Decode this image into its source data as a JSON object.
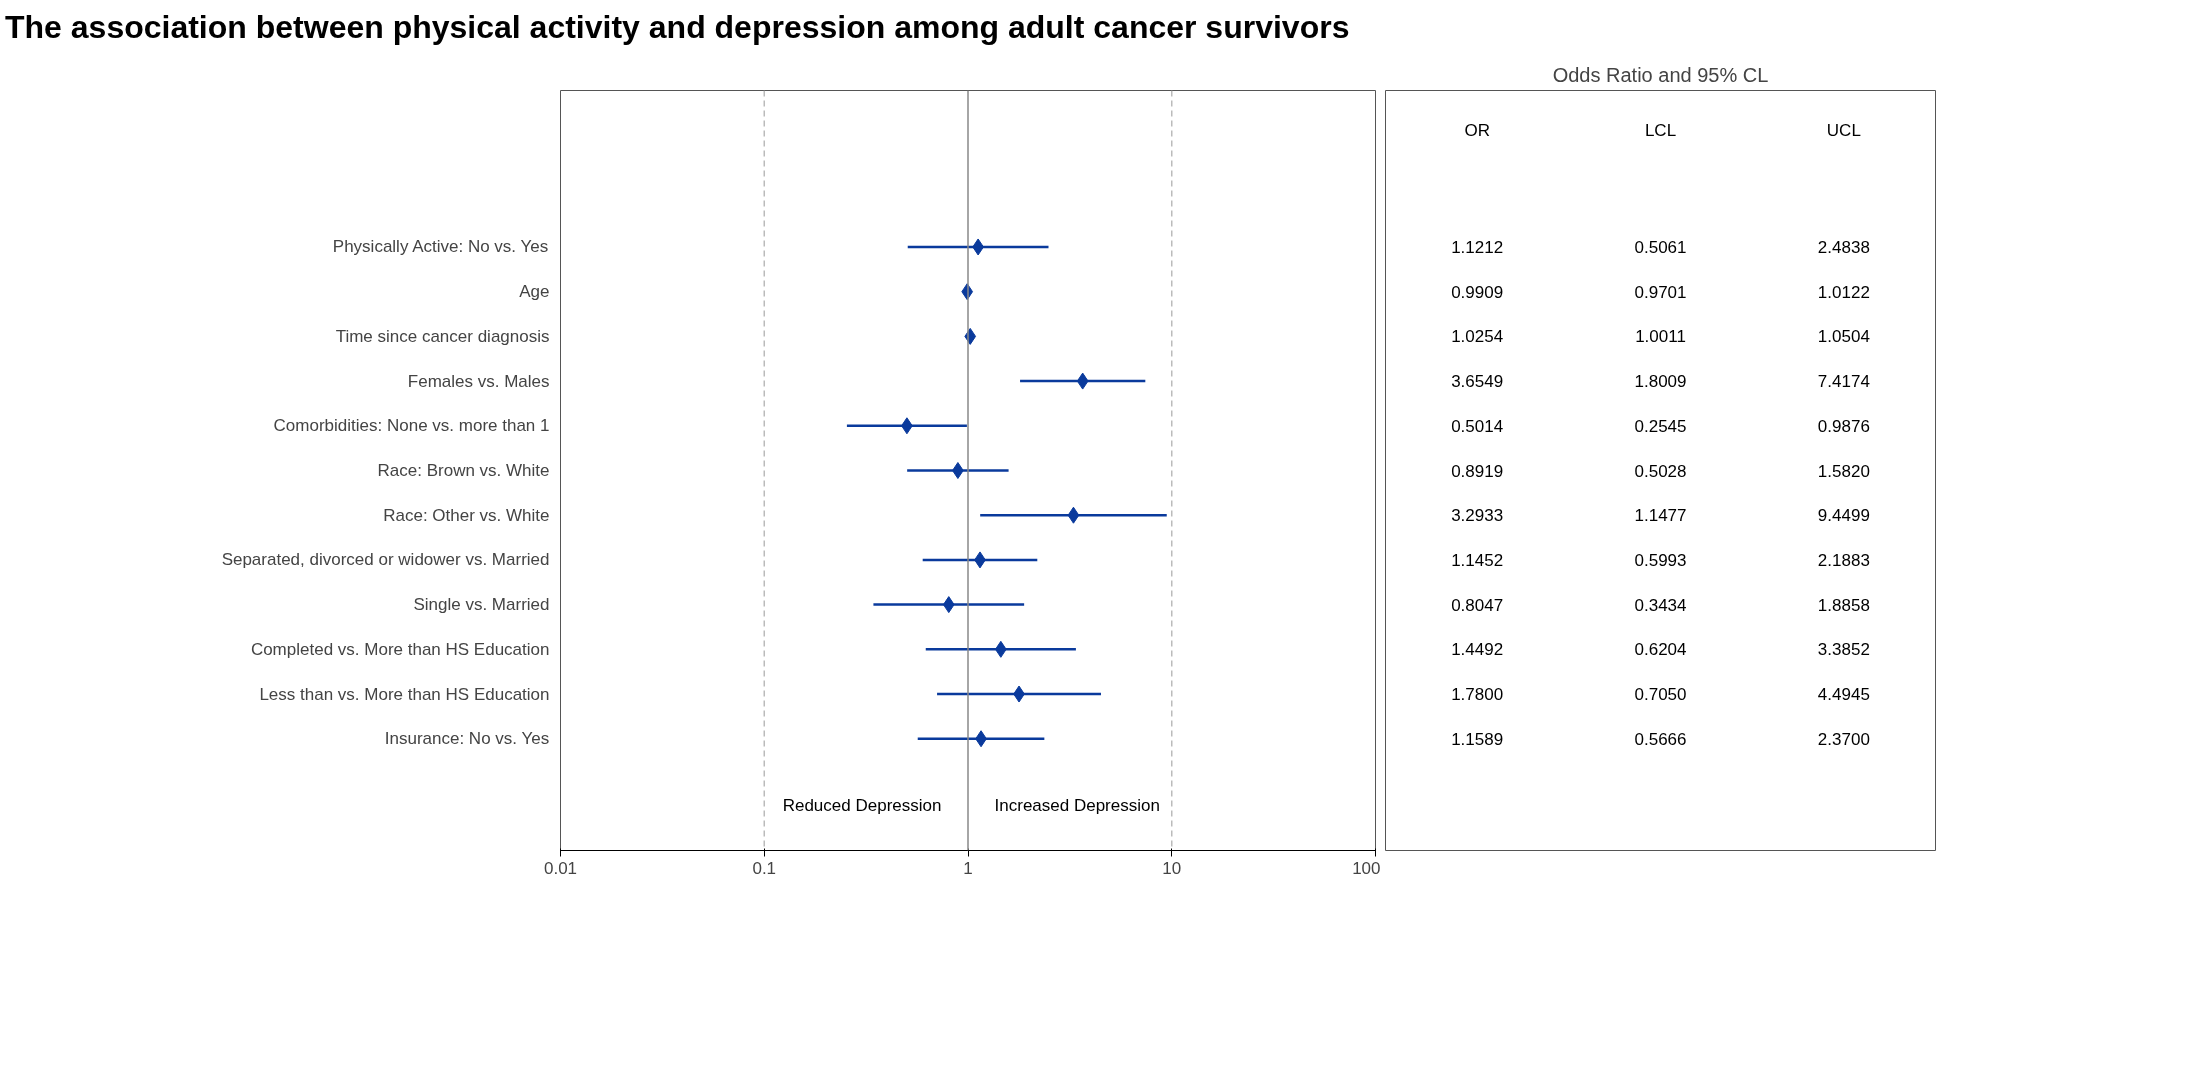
{
  "chart_data": {
    "type": "scatter",
    "orientation": "horizontal",
    "title": "The association between physical activity and depression among adult cancer survivors",
    "categories": [
      "Physically Active: No vs. Yes",
      "Age",
      "Time since cancer diagnosis",
      "Females vs. Males",
      "Comorbidities: None vs. more than 1",
      "Race: Brown vs. White",
      "Race: Other vs. White",
      "Separated, divorced or widower vs. Married",
      "Single vs. Married",
      "Completed vs. More than HS Education",
      "Less than vs. More than HS Education",
      "Insurance: No vs. Yes"
    ],
    "series": [
      {
        "color": "#0a3a9c",
        "values": [
          1.1212,
          0.9909,
          1.0254,
          3.6549,
          0.5014,
          0.8919,
          3.2933,
          1.1452,
          0.8047,
          1.4492,
          1.78,
          1.1589
        ],
        "value_labels": [
          "1.1212",
          "0.9909",
          "1.0254",
          "3.6549",
          "0.5014",
          "0.8919",
          "3.2933",
          "1.1452",
          "0.8047",
          "1.4492",
          "1.7800",
          "1.1589"
        ],
        "errors": [
          [
            0.5061,
            2.4838
          ],
          [
            0.9701,
            1.0122
          ],
          [
            1.0011,
            1.0504
          ],
          [
            1.8009,
            7.4174
          ],
          [
            0.2545,
            0.9876
          ],
          [
            0.5028,
            1.582
          ],
          [
            1.1477,
            9.4499
          ],
          [
            0.5993,
            2.1883
          ],
          [
            0.3434,
            1.8858
          ],
          [
            0.6204,
            3.3852
          ],
          [
            0.705,
            4.4945
          ],
          [
            0.5666,
            2.37
          ]
        ]
      }
    ],
    "log": "x",
    "xlim": [
      0.01,
      100
    ],
    "xticks": [
      0.01,
      0.1,
      1,
      10,
      100
    ],
    "grid": false,
    "marker": "diamond",
    "ref_lines": [
      {
        "axis": "x",
        "value": 1,
        "color": "#888888",
        "line_style": "solid"
      },
      {
        "axis": "x",
        "value": 0.1,
        "color": "#bbbbbb",
        "line_style": "dashed"
      },
      {
        "axis": "x",
        "value": 10,
        "color": "#bbbbbb",
        "line_style": "dashed"
      }
    ],
    "annotations": [
      "Odds Ratio and 95% CL",
      "OR",
      "LCL",
      "UCL",
      "Reduced Depression",
      "Increased Depression",
      "0.5061",
      "0.9701",
      "1.0011",
      "1.8009",
      "0.2545",
      "0.5028",
      "1.1477",
      "0.5993",
      "0.3434",
      "0.6204",
      "0.7050",
      "0.5666",
      "2.4838",
      "1.0122",
      "1.0504",
      "7.4174",
      "0.9876",
      "1.5820",
      "9.4499",
      "2.1883",
      "1.8858",
      "3.3852",
      "4.4945",
      "2.3700"
    ]
  }
}
